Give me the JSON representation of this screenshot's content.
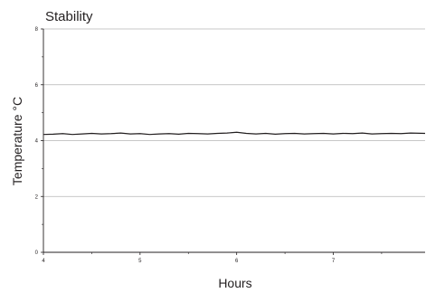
{
  "chart_data": {
    "type": "line",
    "title": "Stability",
    "xlabel": "Hours",
    "ylabel": "Temperature °C",
    "xlim": [
      4,
      7.95
    ],
    "ylim": [
      0,
      8
    ],
    "xticks": [
      4,
      5,
      6,
      7
    ],
    "xtick_labels": [
      "4",
      "5",
      "6",
      "7"
    ],
    "yticks": [
      0,
      2,
      4,
      6,
      8
    ],
    "ytick_labels": [
      "0",
      "2",
      "4",
      "6",
      "8"
    ],
    "grid": "horizontal",
    "colors": {
      "line": "#231f20",
      "grid": "#b5b5b5",
      "axis": "#231f20"
    },
    "series": [
      {
        "x": [
          4.0,
          4.1,
          4.2,
          4.3,
          4.4,
          4.5,
          4.6,
          4.7,
          4.8,
          4.9,
          5.0,
          5.1,
          5.2,
          5.3,
          5.4,
          5.5,
          5.6,
          5.7,
          5.8,
          5.9,
          6.0,
          6.1,
          6.2,
          6.3,
          6.4,
          6.5,
          6.6,
          6.7,
          6.8,
          6.9,
          7.0,
          7.1,
          7.2,
          7.3,
          7.4,
          7.5,
          7.6,
          7.7,
          7.8,
          7.95
        ],
        "values": [
          4.22,
          4.23,
          4.25,
          4.22,
          4.24,
          4.26,
          4.24,
          4.25,
          4.27,
          4.24,
          4.25,
          4.22,
          4.24,
          4.25,
          4.23,
          4.26,
          4.25,
          4.24,
          4.26,
          4.27,
          4.3,
          4.26,
          4.24,
          4.26,
          4.23,
          4.25,
          4.26,
          4.24,
          4.25,
          4.26,
          4.24,
          4.26,
          4.25,
          4.27,
          4.24,
          4.25,
          4.26,
          4.25,
          4.27,
          4.26
        ]
      }
    ]
  }
}
